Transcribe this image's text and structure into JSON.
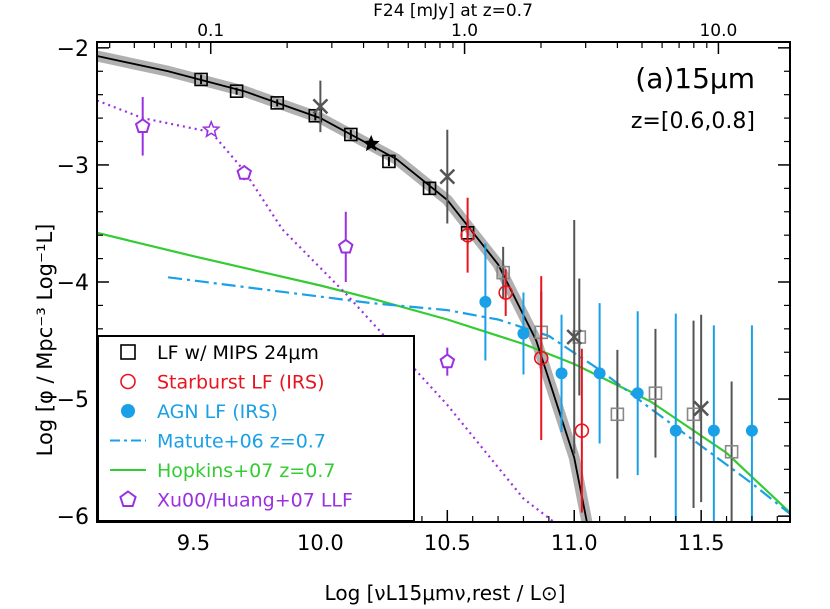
{
  "chart_data": {
    "type": "scatter",
    "panel_label": "(a)15μm",
    "redshift_label": "z=[0.6,0.8]",
    "xlabel": "Log [νL15μmν,rest / L⊙]",
    "ylabel": "Log [φ / Mpc⁻³ Log⁻¹L]",
    "top_xlabel": "F24 [mJy] at z=0.7",
    "xlim": [
      9.12,
      11.85
    ],
    "ylim": [
      -6.05,
      -1.95
    ],
    "x_ticks": [
      "9.5",
      "10.0",
      "10.5",
      "11.0",
      "11.5"
    ],
    "y_ticks": [
      "−2",
      "−3",
      "−4",
      "−5",
      "−6"
    ],
    "top_ticks": [
      {
        "label": "0.1",
        "x": 9.568
      },
      {
        "label": "1.0",
        "x": 10.568
      },
      {
        "label": "10.0",
        "x": 11.568
      }
    ],
    "colors": {
      "mips": "#555555",
      "starburst": "#e8141e",
      "agn": "#1aa0e6",
      "matute": "#1aa0e6",
      "hopkins": "#33cc33",
      "xu": "#9b30e0",
      "fit": "#000000",
      "band": "#b0b0b0"
    },
    "legend": [
      {
        "label": "LF w/ MIPS 24μm",
        "color": "#000000",
        "symbol": "square"
      },
      {
        "label": "Starburst LF (IRS)",
        "color": "#e8141e",
        "symbol": "circle-open"
      },
      {
        "label": "AGN LF (IRS)",
        "color": "#1aa0e6",
        "symbol": "circle-filled"
      },
      {
        "label": "Matute+06 z=0.7",
        "color": "#1aa0e6",
        "symbol": "dashdot"
      },
      {
        "label": "Hopkins+07 z=0.7",
        "color": "#33cc33",
        "symbol": "solid"
      },
      {
        "label": "Xu00/Huang+07 LLF",
        "color": "#9b30e0",
        "symbol": "pentagon"
      }
    ],
    "fit_curve": {
      "x": [
        9.12,
        9.4,
        9.7,
        10.0,
        10.3,
        10.5,
        10.7,
        10.85,
        11.0,
        11.05
      ],
      "y": [
        -2.07,
        -2.2,
        -2.37,
        -2.6,
        -2.95,
        -3.3,
        -3.85,
        -4.5,
        -5.5,
        -6.05
      ]
    },
    "mips_lf": [
      {
        "x": 9.53,
        "y": -2.27,
        "err": 0.04,
        "color": "#000000"
      },
      {
        "x": 9.67,
        "y": -2.37,
        "err": 0.03,
        "color": "#000000"
      },
      {
        "x": 9.83,
        "y": -2.47,
        "err": 0.03,
        "color": "#000000"
      },
      {
        "x": 9.98,
        "y": -2.58,
        "err": 0.04,
        "color": "#000000"
      },
      {
        "x": 10.12,
        "y": -2.74,
        "err": 0.04,
        "color": "#000000"
      },
      {
        "x": 10.27,
        "y": -2.97,
        "err": 0.04,
        "color": "#000000"
      },
      {
        "x": 10.43,
        "y": -3.2,
        "err": 0.05,
        "color": "#000000"
      },
      {
        "x": 10.58,
        "y": -3.58,
        "err": 0.1,
        "color": "#000000"
      },
      {
        "x": 10.72,
        "y": -3.92,
        "err": 0.22,
        "color": "#888888"
      },
      {
        "x": 10.87,
        "y": -4.43,
        "err": 0.35,
        "color": "#888888"
      },
      {
        "x": 11.02,
        "y": -4.47,
        "err": 0.5,
        "color": "#888888"
      },
      {
        "x": 11.17,
        "y": -5.13,
        "err": 0.55,
        "color": "#888888"
      },
      {
        "x": 11.32,
        "y": -4.95,
        "err": 0.55,
        "color": "#888888"
      },
      {
        "x": 11.47,
        "y": -5.13,
        "err": 0.8,
        "color": "#888888"
      },
      {
        "x": 11.62,
        "y": -5.45,
        "err": 0.6,
        "color": "#888888"
      }
    ],
    "crosses": [
      {
        "x": 10.0,
        "y": -2.5,
        "err": 0.22
      },
      {
        "x": 10.5,
        "y": -3.1,
        "err": 0.4
      },
      {
        "x": 11.0,
        "y": -4.47,
        "err": 1.0
      },
      {
        "x": 11.5,
        "y": -5.08,
        "err": 0.8
      }
    ],
    "star_point": {
      "x": 10.2,
      "y": -2.82
    },
    "starburst_lf": [
      {
        "x": 10.58,
        "y": -3.6,
        "err": 0.32
      },
      {
        "x": 10.73,
        "y": -4.09,
        "err": 0.2
      },
      {
        "x": 10.87,
        "y": -4.65,
        "err": 0.7
      },
      {
        "x": 11.03,
        "y": -5.27,
        "err": 0.7
      }
    ],
    "agn_lf": [
      {
        "x": 10.65,
        "y": -4.17,
        "err": 0.5
      },
      {
        "x": 10.8,
        "y": -4.44,
        "err": 0.35
      },
      {
        "x": 10.95,
        "y": -4.78,
        "err": 0.5
      },
      {
        "x": 11.1,
        "y": -4.78,
        "err": 0.6
      },
      {
        "x": 11.25,
        "y": -4.95,
        "err": 0.7
      },
      {
        "x": 11.4,
        "y": -5.27,
        "err": 1.0
      },
      {
        "x": 11.55,
        "y": -5.27,
        "err": 0.9
      },
      {
        "x": 11.7,
        "y": -5.27,
        "err": 0.9
      }
    ],
    "matute_curve": {
      "x": [
        9.4,
        9.8,
        10.2,
        10.5,
        10.7,
        10.9,
        11.1,
        11.3,
        11.5,
        11.7,
        11.85
      ],
      "y": [
        -3.96,
        -4.07,
        -4.18,
        -4.24,
        -4.32,
        -4.46,
        -4.75,
        -5.08,
        -5.4,
        -5.72,
        -5.98
      ]
    },
    "hopkins_curve": {
      "x": [
        9.12,
        9.5,
        9.8,
        10.0,
        10.2,
        10.5,
        10.8,
        11.0,
        11.3,
        11.6,
        11.85
      ],
      "y": [
        -3.58,
        -3.78,
        -3.93,
        -4.03,
        -4.14,
        -4.32,
        -4.53,
        -4.7,
        -5.02,
        -5.46,
        -5.97
      ]
    },
    "xu_curve": {
      "x": [
        9.12,
        9.3,
        9.57,
        9.7,
        9.85,
        10.1,
        10.5,
        10.8,
        10.92
      ],
      "y": [
        -2.45,
        -2.6,
        -2.72,
        -3.05,
        -3.55,
        -4.1,
        -5.05,
        -5.85,
        -6.05
      ]
    },
    "xu_points": [
      {
        "x": 9.3,
        "y": -2.67,
        "err": 0.25
      },
      {
        "x": 9.7,
        "y": -3.07,
        "err": 0.06
      },
      {
        "x": 10.1,
        "y": -3.7,
        "err": 0.3
      },
      {
        "x": 10.5,
        "y": -4.68,
        "err": 0.12
      }
    ],
    "xu_star": {
      "x": 9.57,
      "y": -2.7
    }
  }
}
